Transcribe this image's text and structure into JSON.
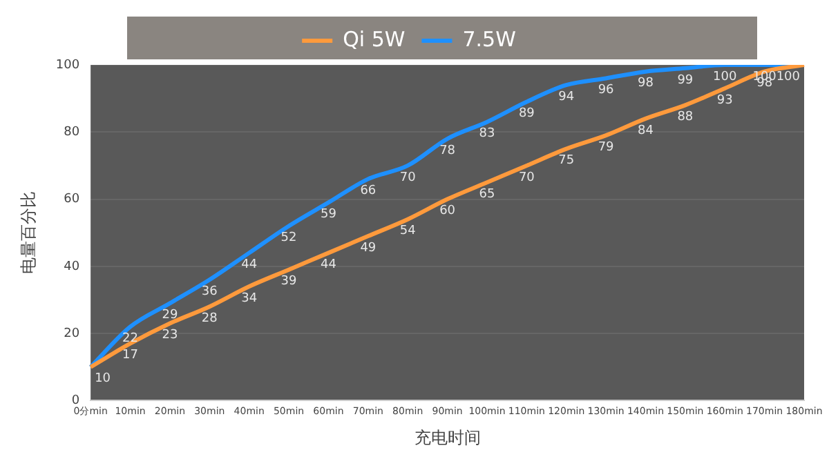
{
  "chart_data": {
    "type": "line",
    "xlabel": "充电时间",
    "ylabel": "电量百分比",
    "categories": [
      "0分min",
      "10min",
      "20min",
      "30min",
      "40min",
      "50min",
      "60min",
      "70min",
      "80min",
      "90min",
      "100min",
      "110min",
      "120min",
      "130min",
      "140min",
      "150min",
      "160min",
      "170min",
      "180min"
    ],
    "series": [
      {
        "name": "Qi 5W",
        "color": "#ff9a3c",
        "values": [
          10,
          17,
          23,
          28,
          34,
          39,
          44,
          49,
          54,
          60,
          65,
          70,
          75,
          79,
          84,
          88,
          93,
          98,
          100
        ],
        "value_labels": [
          "10",
          "17",
          "23",
          "28",
          "34",
          "39",
          "44",
          "49",
          "54",
          "60",
          "65",
          "70",
          "75",
          "79",
          "84",
          "88",
          "93",
          "98",
          "100"
        ]
      },
      {
        "name": "7.5W",
        "color": "#1e90ff",
        "values": [
          10,
          22,
          29,
          36,
          44,
          52,
          59,
          66,
          70,
          78,
          83,
          89,
          94,
          96,
          98,
          99,
          100,
          100,
          100
        ],
        "value_labels": [
          null,
          "22",
          "29",
          "36",
          "44",
          "52",
          "59",
          "66",
          "70",
          "78",
          "83",
          "89",
          "94",
          "96",
          "98",
          "99",
          "100",
          "100",
          null
        ]
      }
    ],
    "ylim": [
      0,
      100
    ],
    "yticks": [
      0,
      20,
      40,
      60,
      80,
      100
    ],
    "grid": "y",
    "legend": "top"
  }
}
